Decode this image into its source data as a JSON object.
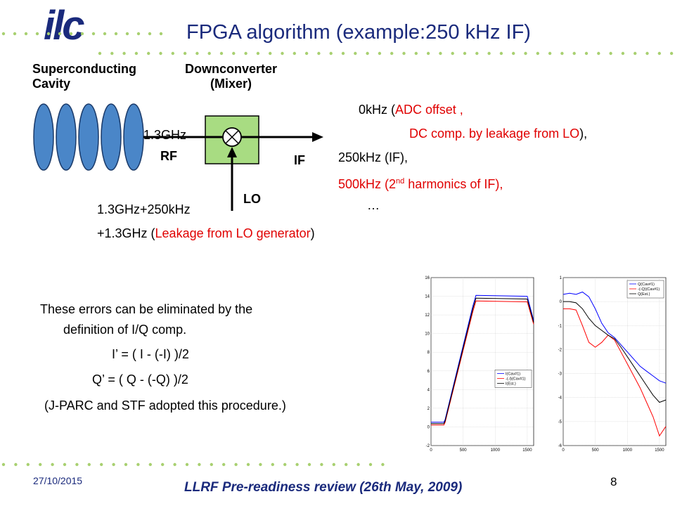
{
  "logo": {
    "text": "ilc"
  },
  "title": "FPGA algorithm (example:250 kHz IF)",
  "diagram": {
    "cavity_label_1": "Superconducting",
    "cavity_label_2": "Cavity",
    "mixer_label_1": "Downconverter",
    "mixer_label_2": "(Mixer)",
    "rf_freq": "1.3GHz",
    "rf_label": "RF",
    "if_label": "IF",
    "lo_label": "LO",
    "lo_freq_1": "1.3GHz+250kHz",
    "lo_freq_2_prefix": "+1.3GHz (",
    "lo_freq_2_red": "Leakage from LO generator",
    "lo_freq_2_suffix": ")",
    "colors": {
      "cavity_fill": "#4a86c8",
      "mixer_fill": "#a8dc82",
      "arrow": "#000000"
    }
  },
  "components": {
    "line1_black": "0kHz (",
    "line1_red": "ADC offset ,",
    "line2_red": "DC comp. by leakage from LO",
    "line2_black": "),",
    "line3": "250kHz (IF),",
    "line4_pre": "500kHz (2",
    "line4_sup": "nd",
    "line4_post": " harmonics of IF),",
    "line5": "…"
  },
  "body": {
    "line1": "These errors can be eliminated by the",
    "line2": "definition of I/Q comp.",
    "line3": "I’ = ( I - (-I) )/2",
    "line4": "Q’ = ( Q - (-Q) )/2",
    "line5": "(J-PARC and STF adopted this procedure.)"
  },
  "footer": {
    "date": "27/10/2015",
    "center": "LLRF Pre-readiness review (26th May, 2009)",
    "page": "8"
  },
  "chart_data": [
    {
      "type": "line",
      "x_ticks": [
        "0",
        "500",
        "1000",
        "1500"
      ],
      "y_ticks": [
        "-2",
        "0",
        "2",
        "4",
        "6",
        "8",
        "10",
        "12",
        "14",
        "16"
      ],
      "xlim": [
        0,
        1600
      ],
      "ylim": [
        -2,
        16
      ],
      "legend_position": "lower-right",
      "series": [
        {
          "name": "I(Cav#1)",
          "color": "#0000ff",
          "x": [
            0,
            200,
            220,
            650,
            700,
            1500,
            1600
          ],
          "y": [
            0.5,
            0.5,
            0.8,
            12.9,
            14.1,
            14.0,
            11.4
          ]
        },
        {
          "name": "-(-I)(Cav#1)",
          "color": "#ff0000",
          "x": [
            0,
            200,
            220,
            650,
            700,
            1500,
            1600
          ],
          "y": [
            0.2,
            0.2,
            0.5,
            12.3,
            13.5,
            13.4,
            11.0
          ]
        },
        {
          "name": "I(Est.)",
          "color": "#000000",
          "x": [
            0,
            200,
            220,
            650,
            700,
            1500,
            1600
          ],
          "y": [
            0.35,
            0.35,
            0.65,
            12.6,
            13.8,
            13.7,
            11.2
          ]
        }
      ]
    },
    {
      "type": "line",
      "x_ticks": [
        "0",
        "500",
        "1000",
        "1500"
      ],
      "y_ticks": [
        "-6",
        "-5",
        "-4",
        "-3",
        "-2",
        "-1",
        "0",
        "1"
      ],
      "xlim": [
        0,
        1600
      ],
      "ylim": [
        -6,
        1
      ],
      "legend_position": "top-right",
      "series": [
        {
          "name": "Q(Cav#1)",
          "color": "#0000ff",
          "x": [
            0,
            100,
            200,
            300,
            400,
            500,
            600,
            700,
            800,
            900,
            1000,
            1100,
            1200,
            1300,
            1400,
            1500,
            1600
          ],
          "y": [
            0.3,
            0.35,
            0.3,
            0.4,
            0.2,
            -0.3,
            -0.9,
            -1.3,
            -1.5,
            -1.8,
            -2.1,
            -2.4,
            -2.7,
            -2.9,
            -3.1,
            -3.3,
            -3.4
          ]
        },
        {
          "name": "-(-Q)(Cav#1)",
          "color": "#ff0000",
          "x": [
            0,
            100,
            200,
            300,
            400,
            500,
            600,
            700,
            800,
            900,
            1000,
            1100,
            1200,
            1300,
            1400,
            1500,
            1600
          ],
          "y": [
            -0.3,
            -0.3,
            -0.35,
            -1.0,
            -1.7,
            -1.9,
            -1.7,
            -1.4,
            -1.6,
            -2.1,
            -2.6,
            -3.1,
            -3.6,
            -4.2,
            -4.8,
            -5.6,
            -5.2
          ]
        },
        {
          "name": "Q(Est.)",
          "color": "#000000",
          "x": [
            0,
            100,
            200,
            300,
            400,
            500,
            600,
            700,
            800,
            900,
            1000,
            1100,
            1200,
            1300,
            1400,
            1500,
            1600
          ],
          "y": [
            0.0,
            0.0,
            -0.05,
            -0.3,
            -0.7,
            -1.0,
            -1.2,
            -1.4,
            -1.55,
            -1.9,
            -2.3,
            -2.7,
            -3.1,
            -3.5,
            -3.9,
            -4.2,
            -4.1
          ]
        }
      ]
    }
  ]
}
